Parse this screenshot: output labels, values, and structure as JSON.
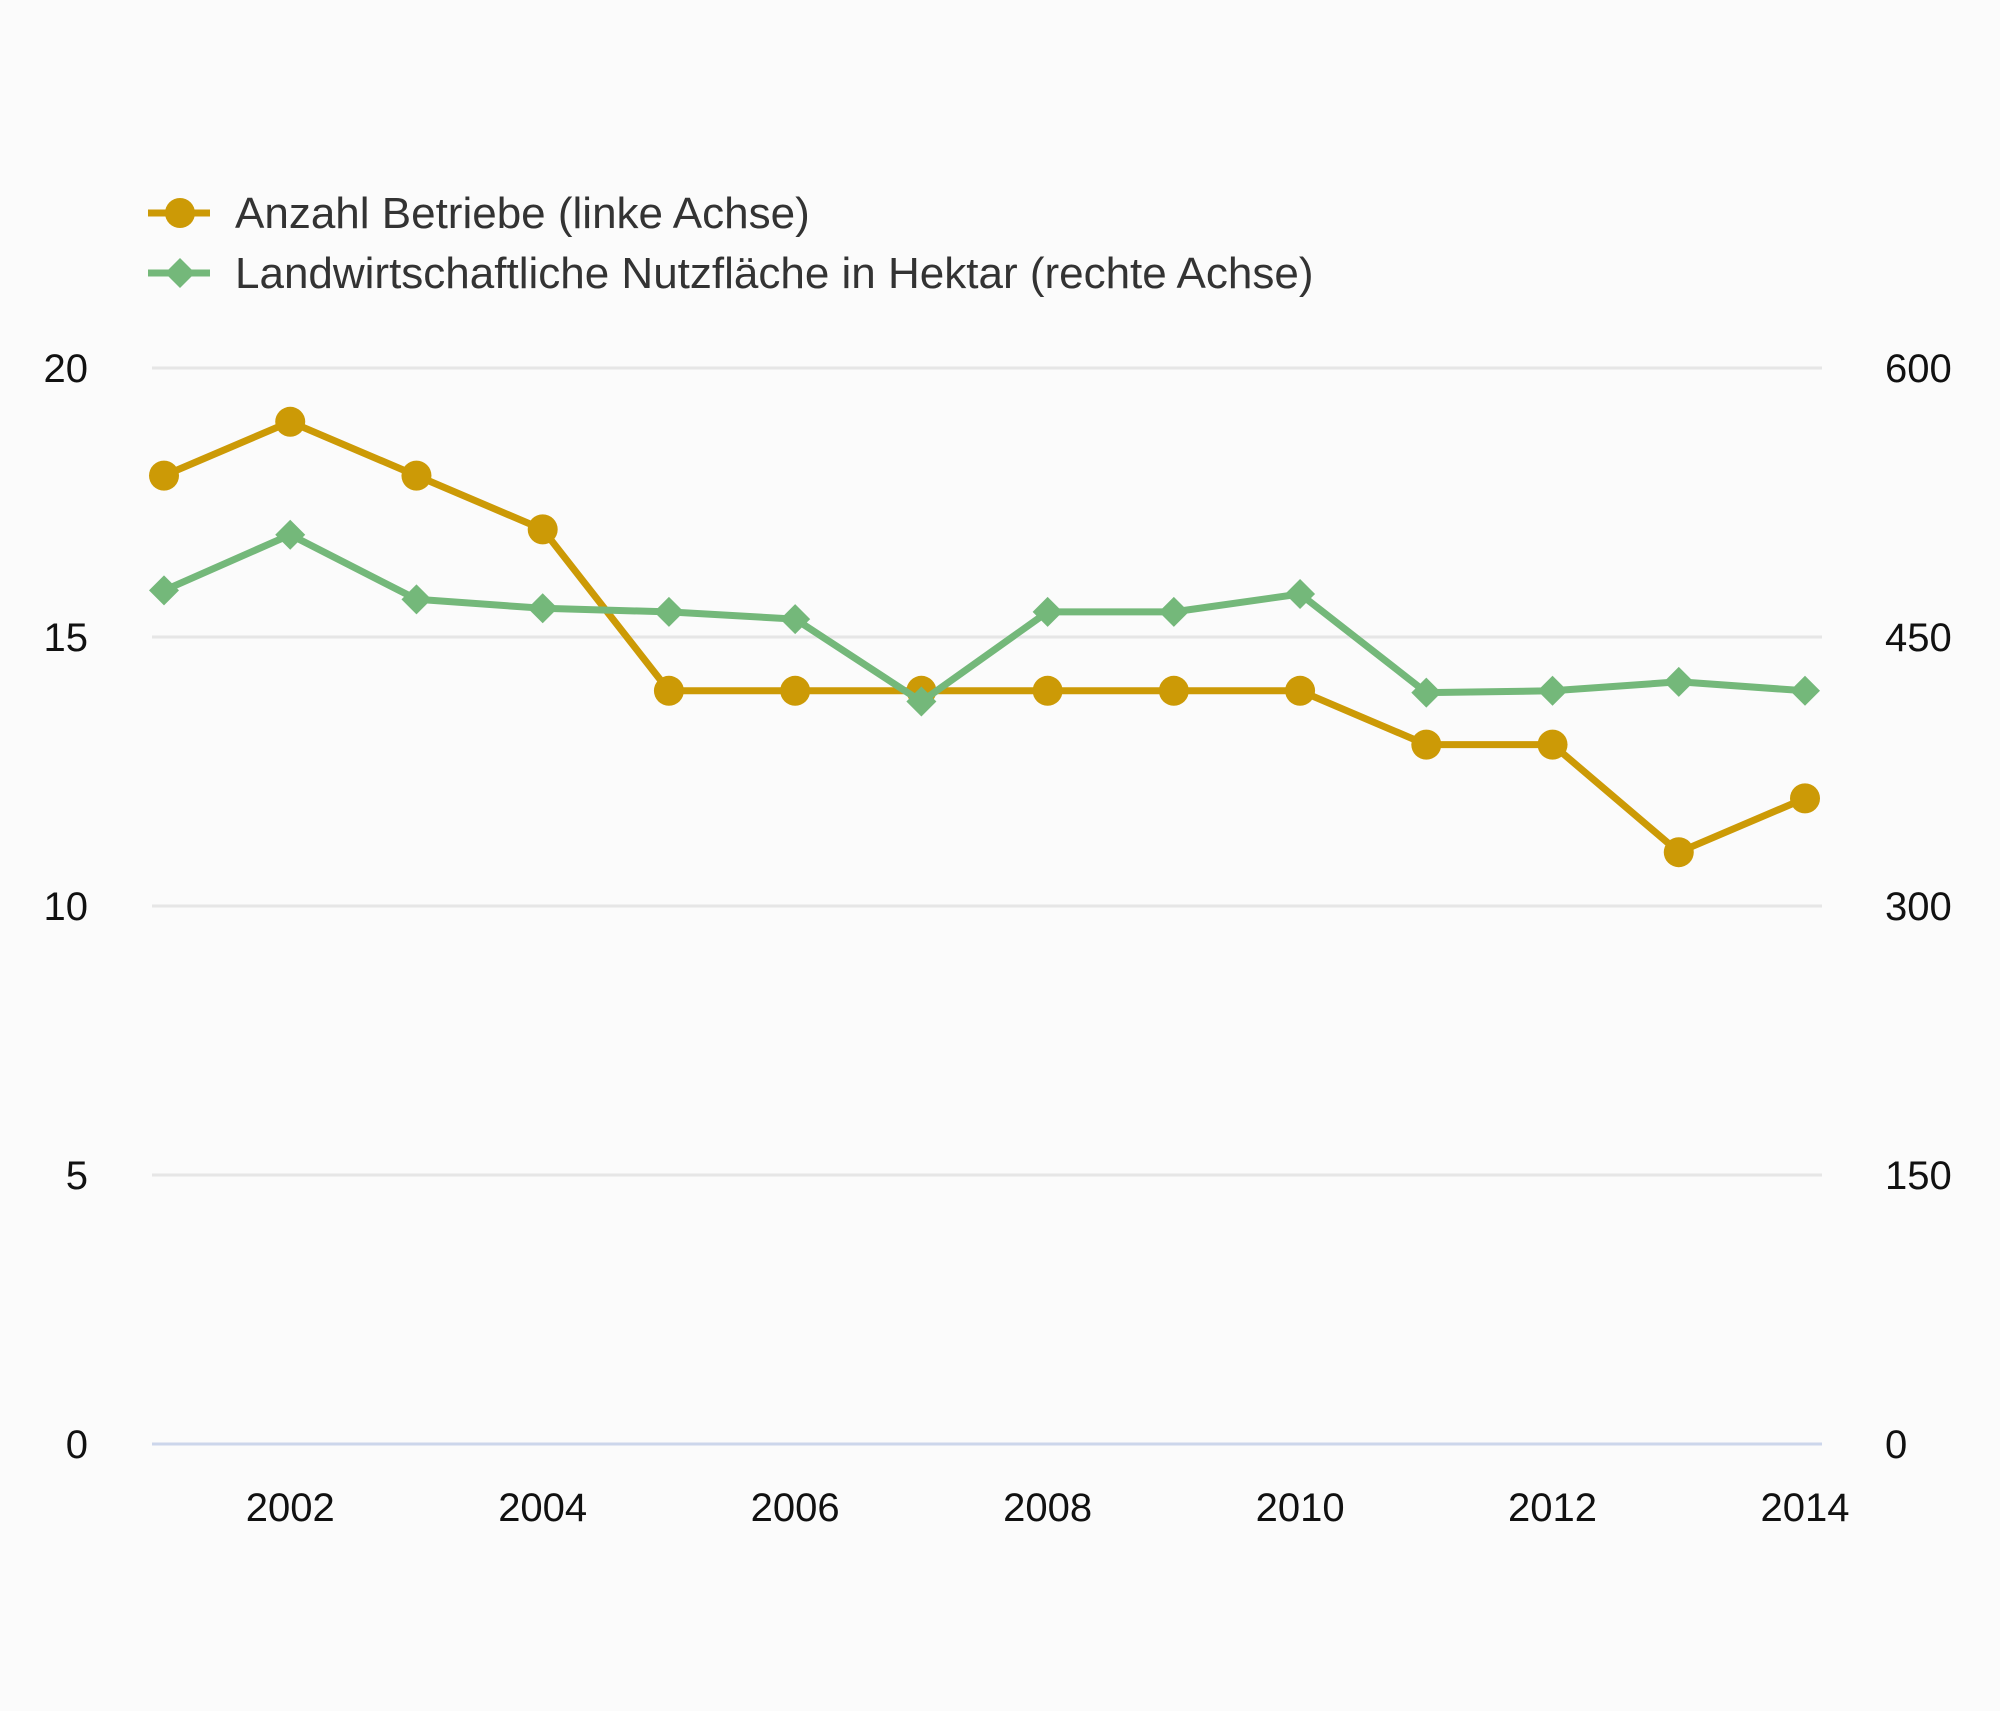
{
  "chart_data": {
    "type": "line",
    "x": [
      2001,
      2002,
      2003,
      2004,
      2005,
      2006,
      2007,
      2008,
      2009,
      2010,
      2011,
      2012,
      2013,
      2014
    ],
    "x_ticks": [
      "2002",
      "2004",
      "2006",
      "2008",
      "2010",
      "2012",
      "2014"
    ],
    "y_left": {
      "ticks": [
        "0",
        "5",
        "10",
        "15",
        "20"
      ],
      "range": [
        0,
        20
      ]
    },
    "y_right": {
      "ticks": [
        "0",
        "150",
        "300",
        "450",
        "600"
      ],
      "range": [
        0,
        600
      ]
    },
    "series": [
      {
        "name": "Anzahl Betriebe (linke Achse)",
        "axis": "left",
        "color": "#cc9a06",
        "marker": "circle",
        "values": [
          18,
          19,
          18,
          17,
          14,
          14,
          14,
          14,
          14,
          14,
          13,
          13,
          11,
          12
        ]
      },
      {
        "name": "Landwirtschaftliche Nutzfläche in Hektar (rechte Achse)",
        "axis": "right",
        "color": "#74b87a",
        "marker": "diamond",
        "values": [
          476,
          507,
          471,
          466,
          464,
          460,
          414,
          464,
          464,
          474,
          419,
          420,
          425,
          420
        ]
      }
    ],
    "grid": true,
    "legend_position": "top-left"
  }
}
